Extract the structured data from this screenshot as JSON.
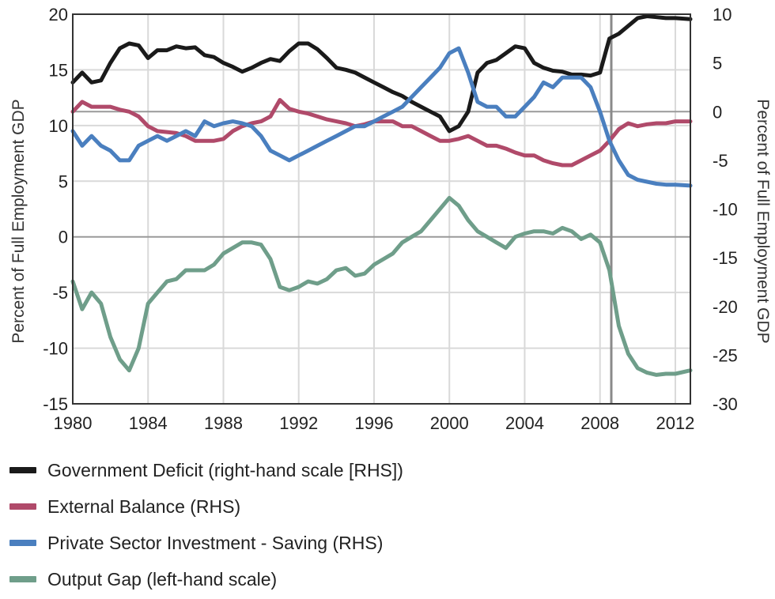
{
  "chart_data": {
    "type": "line",
    "xlim": [
      1980,
      2012.8
    ],
    "x_ticks": [
      "1980",
      "1984",
      "1988",
      "1992",
      "1996",
      "2000",
      "2004",
      "2008",
      "2012"
    ],
    "left_axis": {
      "label": "Percent of Full Employment GDP",
      "ylim": [
        -15,
        20
      ],
      "ticks": [
        "20",
        "15",
        "10",
        "5",
        "0",
        "-5",
        "-10",
        "-15"
      ]
    },
    "right_axis": {
      "label": "Percent of Full Employment GDP",
      "ylim": [
        -30,
        10
      ],
      "ticks": [
        "10",
        "5",
        "0",
        "-5",
        "-10",
        "-15",
        "-20",
        "-25",
        "-30"
      ]
    },
    "vertical_marker_x": 2008.6,
    "series": [
      {
        "name": "Government Deficit (right-hand scale [RHS])",
        "axis": "right",
        "color": "#1a1a1a",
        "x": [
          1980,
          1980.5,
          1981,
          1981.5,
          1982,
          1982.5,
          1983,
          1983.5,
          1984,
          1984.5,
          1985,
          1985.5,
          1986,
          1986.5,
          1987,
          1987.5,
          1988,
          1988.5,
          1989,
          1989.5,
          1990,
          1990.5,
          1991,
          1991.5,
          1992,
          1992.5,
          1993,
          1993.5,
          1994,
          1994.5,
          1995,
          1995.5,
          1996,
          1996.5,
          1997,
          1997.5,
          1998,
          1998.5,
          1999,
          1999.5,
          2000,
          2000.5,
          2001,
          2001.5,
          2002,
          2002.5,
          2003,
          2003.5,
          2004,
          2004.5,
          2005,
          2005.5,
          2006,
          2006.5,
          2007,
          2007.5,
          2008,
          2008.5,
          2009,
          2009.5,
          2010,
          2010.5,
          2011,
          2011.5,
          2012,
          2012.8
        ],
        "y": [
          3,
          4,
          3,
          3.2,
          5,
          6.5,
          7,
          6.8,
          5.5,
          6.3,
          6.3,
          6.7,
          6.5,
          6.6,
          5.8,
          5.6,
          5,
          4.6,
          4.1,
          4.5,
          5,
          5.4,
          5.2,
          6.2,
          7,
          7,
          6.4,
          5.5,
          4.5,
          4.3,
          4,
          3.5,
          3,
          2.5,
          2,
          1.6,
          1,
          0.5,
          0,
          -0.5,
          -2,
          -1.5,
          0,
          4,
          5,
          5.3,
          6,
          6.7,
          6.5,
          5,
          4.5,
          4.2,
          4.1,
          3.8,
          3.8,
          3.7,
          4,
          7.5,
          8,
          8.8,
          9.6,
          9.8,
          9.7,
          9.6,
          9.6,
          9.5
        ]
      },
      {
        "name": "External Balance (RHS)",
        "axis": "right",
        "color": "#b04a6a",
        "x": [
          1980,
          1980.5,
          1981,
          1981.5,
          1982,
          1982.5,
          1983,
          1983.5,
          1984,
          1984.5,
          1985,
          1985.5,
          1986,
          1986.5,
          1987,
          1987.5,
          1988,
          1988.5,
          1989,
          1989.5,
          1990,
          1990.5,
          1991,
          1991.5,
          1992,
          1992.5,
          1993,
          1993.5,
          1994,
          1994.5,
          1995,
          1995.5,
          1996,
          1996.5,
          1997,
          1997.5,
          1998,
          1998.5,
          1999,
          1999.5,
          2000,
          2000.5,
          2001,
          2001.5,
          2002,
          2002.5,
          2003,
          2003.5,
          2004,
          2004.5,
          2005,
          2005.5,
          2006,
          2006.5,
          2007,
          2007.5,
          2008,
          2008.5,
          2009,
          2009.5,
          2010,
          2010.5,
          2011,
          2011.5,
          2012,
          2012.8
        ],
        "y": [
          0,
          1,
          0.5,
          0.5,
          0.5,
          0.2,
          0,
          -0.5,
          -1.5,
          -2,
          -2.1,
          -2.2,
          -2.5,
          -3,
          -3,
          -3,
          -2.8,
          -2,
          -1.5,
          -1.2,
          -1,
          -0.5,
          1.2,
          0.3,
          0,
          -0.2,
          -0.5,
          -0.8,
          -1,
          -1.2,
          -1.5,
          -1.3,
          -1,
          -1,
          -1,
          -1.5,
          -1.5,
          -2,
          -2.5,
          -3,
          -3,
          -2.8,
          -2.5,
          -3,
          -3.5,
          -3.5,
          -3.8,
          -4.2,
          -4.5,
          -4.5,
          -5,
          -5.3,
          -5.5,
          -5.5,
          -5,
          -4.5,
          -4,
          -3,
          -1.8,
          -1.2,
          -1.5,
          -1.3,
          -1.2,
          -1.2,
          -1,
          -1
        ]
      },
      {
        "name": "Private Sector Investment - Saving (RHS)",
        "axis": "right",
        "color": "#4a7fbf",
        "x": [
          1980,
          1980.5,
          1981,
          1981.5,
          1982,
          1982.5,
          1983,
          1983.5,
          1984,
          1984.5,
          1985,
          1985.5,
          1986,
          1986.5,
          1987,
          1987.5,
          1988,
          1988.5,
          1989,
          1989.5,
          1990,
          1990.5,
          1991,
          1991.5,
          1992,
          1992.5,
          1993,
          1993.5,
          1994,
          1994.5,
          1995,
          1995.5,
          1996,
          1996.5,
          1997,
          1997.5,
          1998,
          1998.5,
          1999,
          1999.5,
          2000,
          2000.5,
          2001,
          2001.5,
          2002,
          2002.5,
          2003,
          2003.5,
          2004,
          2004.5,
          2005,
          2005.5,
          2006,
          2006.5,
          2007,
          2007.5,
          2008,
          2008.5,
          2009,
          2009.5,
          2010,
          2010.5,
          2011,
          2011.5,
          2012,
          2012.8
        ],
        "y": [
          -2,
          -3.5,
          -2.5,
          -3.5,
          -4,
          -5,
          -5,
          -3.5,
          -3,
          -2.5,
          -3,
          -2.5,
          -2,
          -2.5,
          -1,
          -1.5,
          -1.2,
          -1,
          -1.2,
          -1.5,
          -2.5,
          -4,
          -4.5,
          -5,
          -4.5,
          -4,
          -3.5,
          -3,
          -2.5,
          -2,
          -1.5,
          -1.5,
          -1,
          -0.5,
          0,
          0.5,
          1.5,
          2.5,
          3.5,
          4.5,
          6,
          6.5,
          4,
          1,
          0.5,
          0.5,
          -0.5,
          -0.5,
          0.5,
          1.5,
          3,
          2.5,
          3.5,
          3.5,
          3.5,
          2.5,
          0,
          -3,
          -5,
          -6.5,
          -7,
          -7.2,
          -7.4,
          -7.5,
          -7.5,
          -7.6
        ]
      },
      {
        "name": "Output Gap (left-hand scale)",
        "axis": "left",
        "color": "#6f9e8a",
        "x": [
          1980,
          1980.5,
          1981,
          1981.5,
          1982,
          1982.5,
          1983,
          1983.5,
          1984,
          1984.5,
          1985,
          1985.5,
          1986,
          1986.5,
          1987,
          1987.5,
          1988,
          1988.5,
          1989,
          1989.5,
          1990,
          1990.5,
          1991,
          1991.5,
          1992,
          1992.5,
          1993,
          1993.5,
          1994,
          1994.5,
          1995,
          1995.5,
          1996,
          1996.5,
          1997,
          1997.5,
          1998,
          1998.5,
          1999,
          1999.5,
          2000,
          2000.5,
          2001,
          2001.5,
          2002,
          2002.5,
          2003,
          2003.5,
          2004,
          2004.5,
          2005,
          2005.5,
          2006,
          2006.5,
          2007,
          2007.5,
          2008,
          2008.5,
          2009,
          2009.5,
          2010,
          2010.5,
          2011,
          2011.5,
          2012,
          2012.8
        ],
        "y": [
          -4,
          -6.5,
          -5,
          -6,
          -9,
          -11,
          -12,
          -10,
          -6,
          -5,
          -4,
          -3.8,
          -3,
          -3,
          -3,
          -2.5,
          -1.5,
          -1,
          -0.5,
          -0.5,
          -0.7,
          -2,
          -4.5,
          -4.8,
          -4.5,
          -4,
          -4.2,
          -3.8,
          -3,
          -2.8,
          -3.5,
          -3.3,
          -2.5,
          -2,
          -1.5,
          -0.5,
          0,
          0.5,
          1.5,
          2.5,
          3.5,
          2.8,
          1.5,
          0.5,
          0,
          -0.5,
          -1,
          0,
          0.3,
          0.5,
          0.5,
          0.3,
          0.8,
          0.5,
          -0.2,
          0.2,
          -0.5,
          -3,
          -8,
          -10.5,
          -11.8,
          -12.2,
          -12.4,
          -12.3,
          -12.3,
          -12
        ]
      }
    ]
  },
  "legend": {
    "items": [
      {
        "label": "Government Deficit (right-hand scale [RHS])",
        "color": "#1a1a1a"
      },
      {
        "label": "External Balance (RHS)",
        "color": "#b04a6a"
      },
      {
        "label": "Private Sector Investment - Saving (RHS)",
        "color": "#4a7fbf"
      },
      {
        "label": "Output Gap (left-hand scale)",
        "color": "#6f9e8a"
      }
    ]
  }
}
